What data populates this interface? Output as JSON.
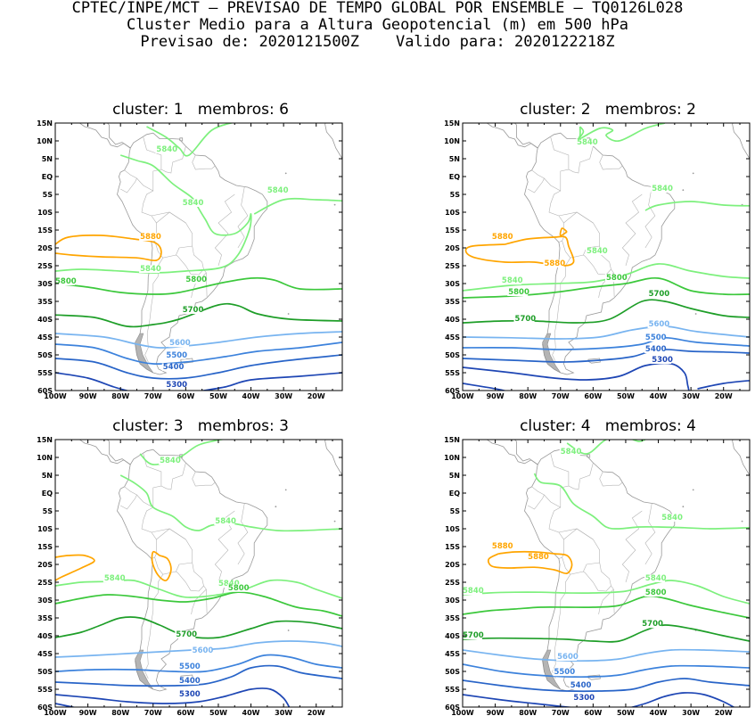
{
  "header": {
    "line1": "CPTEC/INPE/MCT – PREVISAO DE TEMPO GLOBAL POR ENSEMBLE – TQ0126L028",
    "line2": "Cluster Medio para a Altura Geopotencial (m) em 500 hPa",
    "line3": "Previsao de: 2020121500Z    Valido para: 2020122218Z"
  },
  "axes": {
    "lat_labels": [
      "15N",
      "10N",
      "5N",
      "EQ",
      "5S",
      "10S",
      "15S",
      "20S",
      "25S",
      "30S",
      "35S",
      "40S",
      "45S",
      "50S",
      "55S",
      "60S"
    ],
    "lon_labels": [
      "100W",
      "90W",
      "80W",
      "70W",
      "60W",
      "50W",
      "40W",
      "30W",
      "20W"
    ]
  },
  "colors": {
    "c5880": "#ffa500",
    "c5840": "#7df07d",
    "c5800": "#3cc83c",
    "c5700": "#1e9e28",
    "c5600": "#78b4f0",
    "c5500": "#3c82dc",
    "c5400": "#2864c8",
    "c5300": "#1e46b4",
    "coast": "#a0a0a0"
  },
  "panels": [
    {
      "title": "cluster: 1   membros: 6",
      "labels": [
        "5840",
        "5840",
        "5840",
        "5880",
        "5840",
        "5800",
        "5800",
        "5700",
        "5600",
        "5500",
        "5400",
        "5300"
      ]
    },
    {
      "title": "cluster: 2   membros: 2",
      "labels": [
        "5840",
        "5840",
        "5880",
        "5880",
        "5840",
        "5840",
        "5800",
        "5800",
        "5700",
        "5700",
        "5600",
        "5500",
        "5400",
        "5300"
      ]
    },
    {
      "title": "cluster: 3   membros: 3",
      "labels": [
        "5840",
        "5840",
        "5840",
        "5840",
        "5800",
        "5700",
        "5600",
        "5500",
        "5400",
        "5300"
      ]
    },
    {
      "title": "cluster: 4   membros: 4",
      "labels": [
        "5840",
        "5840",
        "5880",
        "5880",
        "5840",
        "5840",
        "5800",
        "5700",
        "5700",
        "5600",
        "5500",
        "5400",
        "5300"
      ]
    }
  ]
}
